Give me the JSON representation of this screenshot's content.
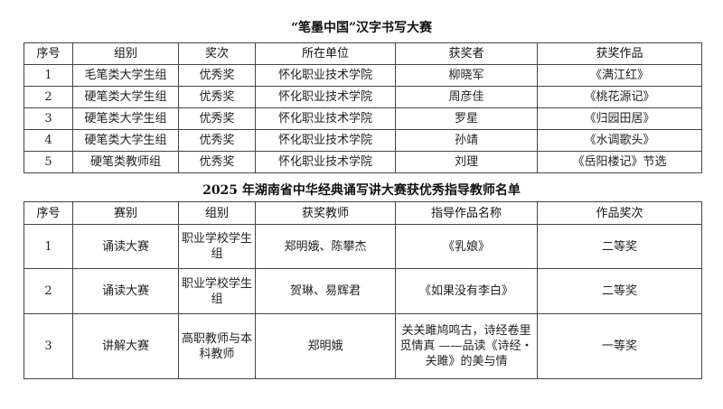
{
  "table1": {
    "title": "“笔墨中国”汉字书写大赛",
    "headers": [
      "序号",
      "组别",
      "奖次",
      "所在单位",
      "获奖者",
      "获奖作品"
    ],
    "rows": [
      [
        "1",
        "毛笔类大学生组",
        "优秀奖",
        "怀化职业技术学院",
        "柳晓军",
        "《满江红》"
      ],
      [
        "2",
        "硬笔类大学生组",
        "优秀奖",
        "怀化职业技术学院",
        "周彦佳",
        "《桃花源记》"
      ],
      [
        "3",
        "硬笔类大学生组",
        "优秀奖",
        "怀化职业技术学院",
        "罗星",
        "《归园田居》"
      ],
      [
        "4",
        "硬笔类大学生组",
        "优秀奖",
        "怀化职业技术学院",
        "孙靖",
        "《水调歌头》"
      ],
      [
        "5",
        "硬笔类教师组",
        "优秀奖",
        "怀化职业技术学院",
        "刘理",
        "《岳阳楼记》节选"
      ]
    ]
  },
  "table2": {
    "title": "2025 年湖南省中华经典诵写讲大赛获优秀指导教师名单",
    "headers": [
      "序号",
      "赛别",
      "组别",
      "获奖教师",
      "指导作品名称",
      "作品奖次"
    ],
    "rows": [
      [
        "1",
        "诵读大赛",
        "职业学校学生组",
        "郑明娥、陈攀杰",
        "《乳娘》",
        "二等奖"
      ],
      [
        "2",
        "诵读大赛",
        "职业学校学生组",
        "贺琳、易辉君",
        "《如果没有李白》",
        "二等奖"
      ],
      [
        "3",
        "讲解大赛",
        "高职教师与本科教师",
        "郑明娥",
        "关关雎鸠鸣古，诗经卷里觅情真 ——品读《诗经・关雎》的美与情",
        "一等奖"
      ]
    ]
  }
}
